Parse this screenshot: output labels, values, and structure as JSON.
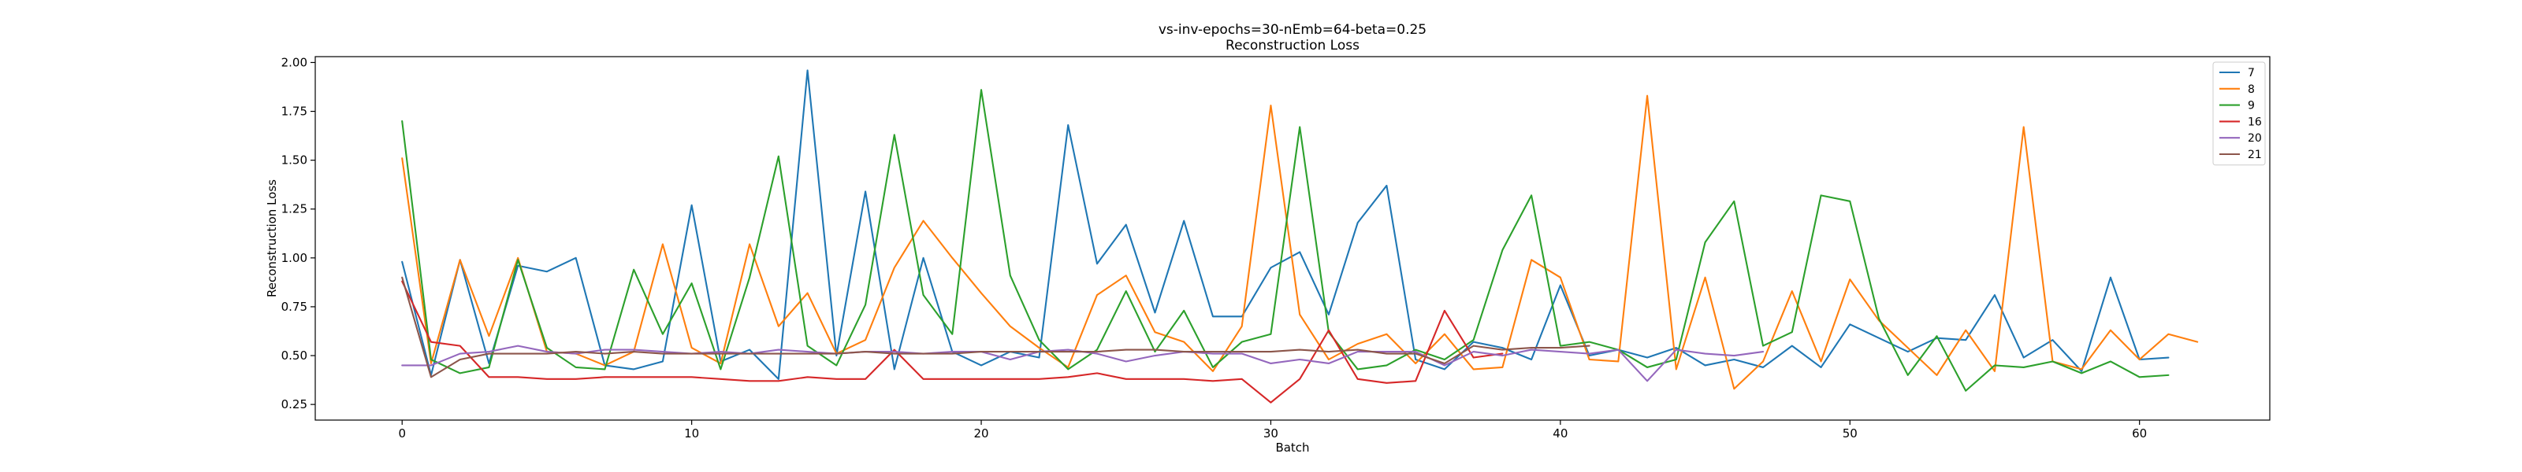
{
  "chart_data": {
    "type": "line",
    "title": "vs-inv-epochs=30-nEmb=64-beta=0.25",
    "subtitle": "Reconstruction Loss",
    "xlabel": "Batch",
    "ylabel": "Reconstruction Loss",
    "xlim": [
      -3,
      64.5
    ],
    "ylim": [
      0.17,
      2.03
    ],
    "xticks": [
      0,
      10,
      20,
      30,
      40,
      50,
      60
    ],
    "yticks": [
      0.25,
      0.5,
      0.75,
      1.0,
      1.25,
      1.5,
      1.75,
      2.0
    ],
    "grid": false,
    "legend_position": "top-right",
    "series": [
      {
        "name": "7",
        "color": "#1f77b4",
        "values": [
          0.98,
          0.4,
          0.99,
          0.46,
          0.96,
          0.93,
          1.0,
          0.45,
          0.43,
          0.47,
          1.27,
          0.47,
          0.53,
          0.38,
          1.96,
          0.5,
          1.34,
          0.43,
          1.0,
          0.52,
          0.45,
          0.52,
          0.49,
          1.68,
          0.97,
          1.17,
          0.72,
          1.19,
          0.7,
          0.7,
          0.95,
          1.03,
          0.71,
          1.18,
          1.37,
          0.48,
          0.43,
          0.57,
          0.54,
          0.48,
          0.86,
          0.5,
          0.53,
          0.49,
          0.54,
          0.45,
          0.48,
          0.44,
          0.55,
          0.44,
          0.66,
          0.59,
          0.52,
          0.59,
          0.58,
          0.81,
          0.49,
          0.58,
          0.42,
          0.9,
          0.48,
          0.49
        ]
      },
      {
        "name": "8",
        "color": "#ff7f0e",
        "values": [
          1.51,
          0.46,
          0.99,
          0.6,
          1.0,
          0.52,
          0.51,
          0.45,
          0.52,
          1.07,
          0.54,
          0.46,
          1.07,
          0.65,
          0.82,
          0.51,
          0.58,
          0.95,
          1.19,
          1.0,
          0.82,
          0.65,
          0.54,
          0.44,
          0.81,
          0.91,
          0.62,
          0.57,
          0.42,
          0.65,
          1.78,
          0.71,
          0.48,
          0.56,
          0.61,
          0.46,
          0.61,
          0.43,
          0.44,
          0.99,
          0.9,
          0.48,
          0.47,
          1.83,
          0.43,
          0.9,
          0.33,
          0.47,
          0.83,
          0.47,
          0.89,
          0.68,
          0.54,
          0.4,
          0.63,
          0.42,
          1.67,
          0.47,
          0.43,
          0.63,
          0.48,
          0.61,
          0.57
        ]
      },
      {
        "name": "9",
        "color": "#2ca02c",
        "values": [
          1.7,
          0.48,
          0.41,
          0.44,
          0.99,
          0.54,
          0.44,
          0.43,
          0.94,
          0.61,
          0.87,
          0.43,
          0.9,
          1.52,
          0.55,
          0.45,
          0.76,
          1.63,
          0.81,
          0.61,
          1.86,
          0.91,
          0.58,
          0.43,
          0.53,
          0.83,
          0.52,
          0.73,
          0.44,
          0.57,
          0.61,
          1.67,
          0.62,
          0.43,
          0.45,
          0.53,
          0.48,
          0.58,
          1.04,
          1.32,
          0.55,
          0.57,
          0.53,
          0.44,
          0.48,
          1.08,
          1.29,
          0.55,
          0.62,
          1.32,
          1.29,
          0.69,
          0.4,
          0.6,
          0.32,
          0.45,
          0.44,
          0.47,
          0.41,
          0.47,
          0.39,
          0.4
        ]
      },
      {
        "name": "16",
        "color": "#d62728",
        "values": [
          0.88,
          0.57,
          0.55,
          0.39,
          0.39,
          0.38,
          0.38,
          0.39,
          0.39,
          0.39,
          0.39,
          0.38,
          0.37,
          0.37,
          0.39,
          0.38,
          0.38,
          0.53,
          0.38,
          0.38,
          0.38,
          0.38,
          0.38,
          0.39,
          0.41,
          0.38,
          0.38,
          0.38,
          0.37,
          0.38,
          0.26,
          0.38,
          0.63,
          0.38,
          0.36,
          0.37,
          0.73,
          0.49,
          0.51
        ]
      },
      {
        "name": "20",
        "color": "#9467bd",
        "values": [
          0.45,
          0.45,
          0.51,
          0.52,
          0.55,
          0.52,
          0.51,
          0.53,
          0.53,
          0.52,
          0.51,
          0.52,
          0.51,
          0.53,
          0.52,
          0.51,
          0.52,
          0.52,
          0.51,
          0.52,
          0.52,
          0.48,
          0.52,
          0.53,
          0.51,
          0.47,
          0.5,
          0.52,
          0.51,
          0.51,
          0.46,
          0.48,
          0.46,
          0.52,
          0.52,
          0.52,
          0.45,
          0.52,
          0.5,
          0.53,
          0.52,
          0.51,
          0.53,
          0.37,
          0.53,
          0.51,
          0.5,
          0.52
        ]
      },
      {
        "name": "21",
        "color": "#8c564b",
        "values": [
          0.9,
          0.39,
          0.48,
          0.51,
          0.51,
          0.51,
          0.52,
          0.51,
          0.52,
          0.51,
          0.51,
          0.51,
          0.51,
          0.51,
          0.51,
          0.51,
          0.52,
          0.51,
          0.51,
          0.51,
          0.52,
          0.52,
          0.52,
          0.52,
          0.52,
          0.53,
          0.53,
          0.52,
          0.52,
          0.52,
          0.52,
          0.53,
          0.52,
          0.53,
          0.51,
          0.51,
          0.46,
          0.55,
          0.53,
          0.54,
          0.54,
          0.55
        ]
      }
    ]
  }
}
